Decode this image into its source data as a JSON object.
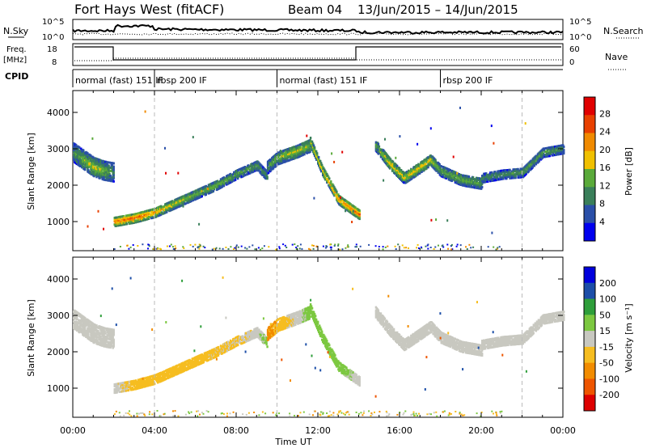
{
  "header": {
    "station": "Fort Hays West (fitACF)",
    "beam": "Beam 04",
    "date_range": "13/Jun/2015 – 14/Jun/2015"
  },
  "top_strip": {
    "nsky_label": "N.Sky",
    "nsky_ticks": [
      "10^5",
      "10^0"
    ],
    "nsearch_label": "N.Search",
    "nsearch_ticks": [
      "10^5",
      "10^0"
    ],
    "freq_label_line1": "Freq.",
    "freq_label_line2": "[MHz]",
    "freq_ticks": [
      "18",
      "8"
    ],
    "nave_label": "Nave",
    "nave_ticks": [
      "60",
      "0"
    ],
    "cpid_label": "CPID",
    "cpid_segments": [
      {
        "label": "normal (fast) 151 IF",
        "start_hour": 0
      },
      {
        "label": "rbsp 200 IF",
        "start_hour": 4.0
      },
      {
        "label": "normal (fast) 151 IF",
        "start_hour": 10.0
      },
      {
        "label": "rbsp 200 IF",
        "start_hour": 18.0
      }
    ]
  },
  "colors": {
    "power_scale": [
      "#0000ee",
      "#2a4fa8",
      "#3a7f5a",
      "#5aaa3a",
      "#f0c000",
      "#f08a00",
      "#e84000",
      "#e00000"
    ],
    "velocity_scale": [
      "#dd0000",
      "#ee5500",
      "#f28c00",
      "#f6bd20",
      "#c8c8c0",
      "#7cc840",
      "#2e9e3a",
      "#1c4ea8",
      "#0000dd"
    ],
    "ground_scatter": "#c8c8c0"
  },
  "power_colorbar": {
    "label": "Power [dB]",
    "ticks": [
      "28",
      "24",
      "20",
      "16",
      "12",
      "8",
      "4"
    ]
  },
  "velocity_colorbar": {
    "label": "Velocity [m s⁻¹]",
    "ticks": [
      "200",
      "100",
      "50",
      "15",
      "-15",
      "-50",
      "-100",
      "-200"
    ]
  },
  "time_axis": {
    "label": "Time UT",
    "ticks": [
      "00:00",
      "04:00",
      "08:00",
      "12:00",
      "16:00",
      "20:00",
      "00:00"
    ]
  },
  "chart_data": [
    {
      "type": "heatmap",
      "panel": "power",
      "xlabel": "Time UT",
      "ylabel": "Slant Range [km]",
      "xlim_hours": [
        0,
        24
      ],
      "ylim": [
        200,
        4600
      ],
      "yticks": [
        1000,
        2000,
        3000,
        4000
      ],
      "colorbar": {
        "label": "Power [dB]",
        "range": [
          0,
          30
        ]
      },
      "mode_change_lines_hours": [
        4,
        10,
        22
      ],
      "scatter_bands": [
        {
          "t": [
            0,
            0.5,
            1,
            1.5,
            2
          ],
          "range_km": [
            2900,
            2700,
            2500,
            2400,
            2350
          ],
          "width_km": 500,
          "power_db": [
            10,
            14,
            16,
            14,
            10
          ]
        },
        {
          "t": [
            2,
            3,
            4,
            5,
            6,
            7,
            8,
            9,
            9.5
          ],
          "range_km": [
            1000,
            1100,
            1250,
            1500,
            1750,
            2000,
            2300,
            2550,
            2250
          ],
          "width_km": 250,
          "power_db": [
            22,
            24,
            20,
            16,
            14,
            14,
            12,
            12,
            10
          ]
        },
        {
          "t": [
            9.5,
            10,
            11,
            11.6
          ],
          "range_km": [
            2500,
            2750,
            2950,
            3100
          ],
          "width_km": 350,
          "power_db": [
            10,
            14,
            16,
            14
          ]
        },
        {
          "t": [
            11.6,
            12.2,
            13,
            14
          ],
          "range_km": [
            3200,
            2400,
            1600,
            1200
          ],
          "width_km": 250,
          "power_db": [
            16,
            18,
            20,
            24
          ]
        },
        {
          "t": [
            14.8,
            15.5,
            16.2,
            17,
            17.5,
            18,
            19,
            20
          ],
          "range_km": [
            3100,
            2600,
            2200,
            2500,
            2700,
            2400,
            2150,
            2050
          ],
          "width_km": 300,
          "power_db": [
            12,
            18,
            16,
            18,
            16,
            12,
            14,
            12
          ]
        },
        {
          "t": [
            20,
            21,
            22,
            23,
            24
          ],
          "range_km": [
            2200,
            2300,
            2350,
            2900,
            3000
          ],
          "width_km": 250,
          "power_db": [
            10,
            10,
            12,
            12,
            10
          ]
        }
      ]
    },
    {
      "type": "heatmap",
      "panel": "velocity",
      "xlabel": "Time UT",
      "ylabel": "Slant Range [km]",
      "xlim_hours": [
        0,
        24
      ],
      "ylim": [
        200,
        4600
      ],
      "yticks": [
        1000,
        2000,
        3000,
        4000
      ],
      "colorbar": {
        "label": "Velocity [m s⁻¹]",
        "range": [
          -250,
          250
        ]
      },
      "mode_change_lines_hours": [
        4,
        10,
        22
      ],
      "scatter_bands": [
        {
          "t": [
            0,
            0.5,
            1,
            1.5,
            2
          ],
          "range_km": [
            2900,
            2700,
            2500,
            2400,
            2350
          ],
          "width_km": 500,
          "velocity": [
            0,
            0,
            0,
            0,
            0
          ]
        },
        {
          "t": [
            2,
            3,
            4,
            5,
            6,
            7,
            8,
            9,
            9.5
          ],
          "range_km": [
            1000,
            1100,
            1250,
            1500,
            1750,
            2000,
            2300,
            2550,
            2250
          ],
          "width_km": 250,
          "velocity": [
            0,
            -30,
            -30,
            -40,
            -30,
            -20,
            -20,
            0,
            30
          ]
        },
        {
          "t": [
            9.5,
            10,
            11,
            11.6
          ],
          "range_km": [
            2500,
            2750,
            2950,
            3100
          ],
          "width_km": 350,
          "velocity": [
            -60,
            -40,
            0,
            30
          ]
        },
        {
          "t": [
            11.6,
            12.2,
            13,
            14
          ],
          "range_km": [
            3200,
            2400,
            1600,
            1200
          ],
          "width_km": 250,
          "velocity": [
            30,
            30,
            30,
            0
          ]
        },
        {
          "t": [
            14.8,
            15.5,
            16.2,
            17,
            17.5,
            18,
            19,
            20
          ],
          "range_km": [
            3100,
            2600,
            2200,
            2500,
            2700,
            2400,
            2150,
            2050
          ],
          "width_km": 300,
          "velocity": [
            0,
            0,
            0,
            0,
            0,
            0,
            0,
            0
          ]
        },
        {
          "t": [
            20,
            21,
            22,
            23,
            24
          ],
          "range_km": [
            2200,
            2300,
            2350,
            2900,
            3000
          ],
          "width_km": 250,
          "velocity": [
            0,
            0,
            0,
            0,
            0
          ]
        }
      ]
    }
  ]
}
